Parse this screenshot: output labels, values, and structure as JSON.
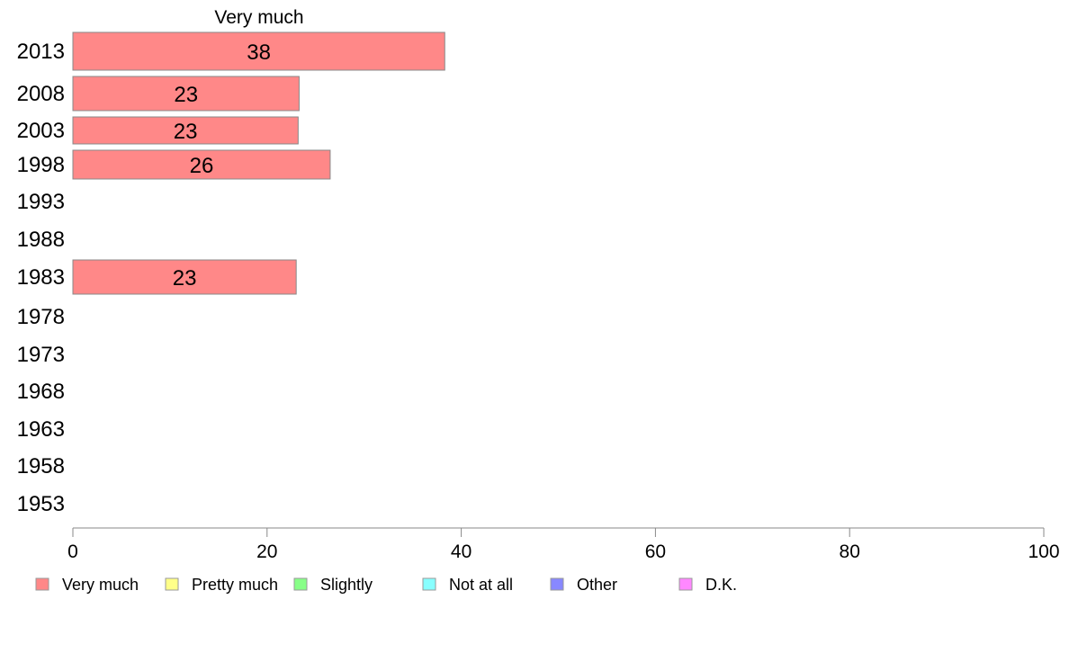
{
  "chart_data": {
    "type": "bar",
    "orientation": "horizontal",
    "title": "Very much",
    "categories": [
      "2013",
      "2008",
      "2003",
      "1998",
      "1993",
      "1988",
      "1983",
      "1978",
      "1973",
      "1968",
      "1963",
      "1958",
      "1953"
    ],
    "series": [
      {
        "name": "Very much",
        "color": "#ff8888",
        "values": [
          38.3,
          23.3,
          23.2,
          26.5,
          null,
          null,
          23.0,
          null,
          null,
          null,
          null,
          null,
          null
        ],
        "labels": [
          "38",
          "23",
          "23",
          "26",
          "",
          "",
          "23",
          "",
          "",
          "",
          "",
          "",
          ""
        ]
      }
    ],
    "xlim": [
      0,
      100
    ],
    "xticks": [
      "0",
      "20",
      "40",
      "60",
      "80",
      "100"
    ],
    "xlabel": "",
    "ylabel": "",
    "grid": false,
    "legend": {
      "position": "bottom",
      "items": [
        {
          "label": "Very much",
          "color": "#ff8888"
        },
        {
          "label": "Pretty much",
          "color": "#ffff88"
        },
        {
          "label": "Slightly",
          "color": "#88ff88"
        },
        {
          "label": "Not at all",
          "color": "#88ffff"
        },
        {
          "label": "Other",
          "color": "#8888ff"
        },
        {
          "label": "D.K.",
          "color": "#ff88ff"
        }
      ]
    }
  }
}
